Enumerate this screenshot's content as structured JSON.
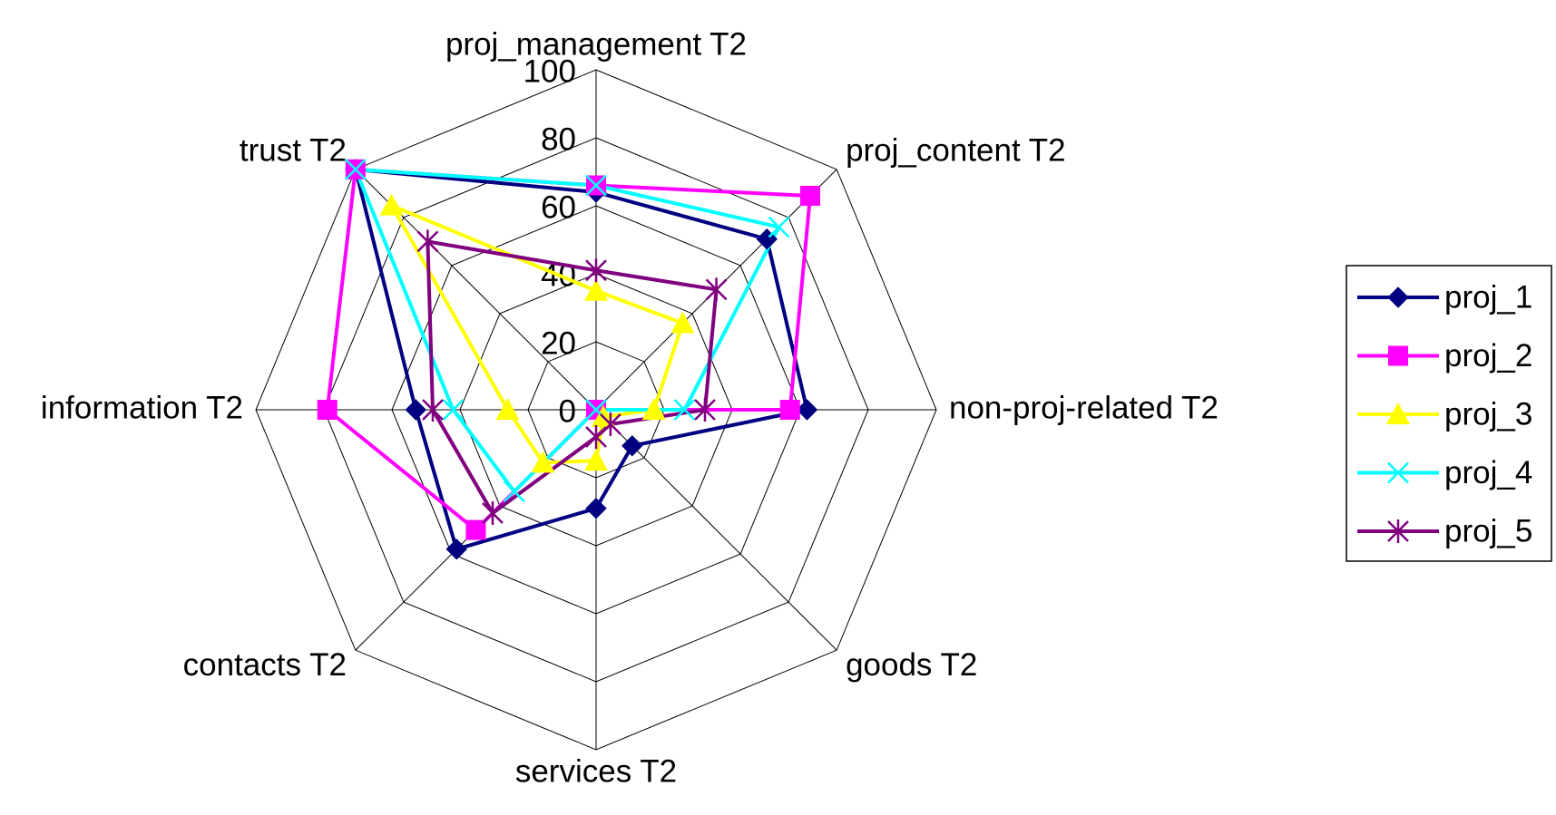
{
  "chart_data": {
    "type": "radar",
    "categories": [
      "proj_management T2",
      "proj_content T2",
      "non-proj-related T2",
      "goods T2",
      "services T2",
      "contacts T2",
      "information T2",
      "trust T2"
    ],
    "ylim": [
      0,
      100
    ],
    "yticks": [
      0,
      20,
      40,
      60,
      80,
      100
    ],
    "grid": true,
    "legend": "right",
    "series": [
      {
        "name": "proj_1",
        "color": "#000080",
        "marker": "diamond",
        "values": [
          64,
          71,
          62,
          15,
          29,
          58,
          53,
          100
        ]
      },
      {
        "name": "proj_2",
        "color": "#ff00ff",
        "marker": "square",
        "values": [
          66,
          89,
          57,
          0,
          0,
          50,
          79,
          100
        ]
      },
      {
        "name": "proj_3",
        "color": "#ffff00",
        "marker": "triangle",
        "values": [
          35,
          36,
          17,
          3,
          15,
          22,
          26,
          85
        ]
      },
      {
        "name": "proj_4",
        "color": "#00ffff",
        "marker": "x",
        "values": [
          66,
          76,
          26,
          0,
          0,
          34,
          42,
          100
        ]
      },
      {
        "name": "proj_5",
        "color": "#800080",
        "marker": "star",
        "values": [
          41,
          50,
          32,
          6,
          8,
          43,
          48,
          70
        ]
      }
    ]
  }
}
